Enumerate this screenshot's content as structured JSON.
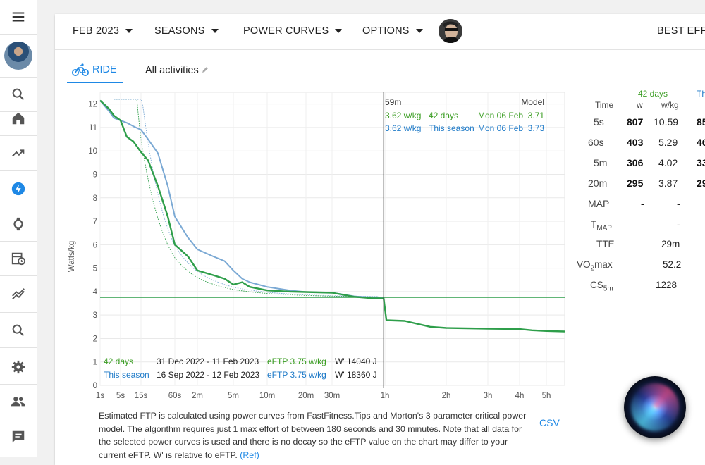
{
  "toolbar": {
    "month_label": "FEB 2023",
    "seasons_label": "SEASONS",
    "power_curves_label": "POWER CURVES",
    "options_label": "OPTIONS",
    "best_efforts_label": "BEST EFFO"
  },
  "tabs": {
    "ride_label": "RIDE",
    "all_activities_label": "All activities"
  },
  "sidebar": {
    "icons": [
      "menu-icon",
      "avatar",
      "search-icon",
      "home-icon",
      "trending-icon",
      "lightning-icon",
      "watch-icon",
      "calendar-icon",
      "chart-icon",
      "search-icon",
      "settings-icon",
      "people-icon",
      "chat-icon"
    ]
  },
  "chart_data": {
    "type": "line",
    "ylabel": "Watts/kg",
    "ylim": [
      0,
      12.5
    ],
    "y_ticks": [
      "0",
      "1",
      "2",
      "3",
      "4",
      "5",
      "6",
      "7",
      "8",
      "9",
      "10",
      "11",
      "12"
    ],
    "x_ticks": [
      "1s",
      "5s",
      "15s",
      "60s",
      "2m",
      "5m",
      "10m",
      "20m",
      "30m",
      "1h",
      "2h",
      "3h",
      "4h",
      "5h"
    ],
    "x_tick_seconds": [
      1,
      5,
      15,
      60,
      120,
      300,
      600,
      1200,
      1800,
      3600,
      7200,
      10800,
      14400,
      18000
    ],
    "x_scale": "log-ish (seconds)",
    "eftp_line": 3.75,
    "cursor_time": "59m",
    "series": [
      {
        "name": "42 days",
        "color": "#2e9e4a",
        "points": [
          [
            1,
            12.15
          ],
          [
            2,
            11.8
          ],
          [
            3,
            11.5
          ],
          [
            5,
            11.3
          ],
          [
            7,
            10.6
          ],
          [
            10,
            10.4
          ],
          [
            15,
            9.95
          ],
          [
            20,
            9.6
          ],
          [
            30,
            8.5
          ],
          [
            45,
            7.2
          ],
          [
            60,
            6.0
          ],
          [
            90,
            5.5
          ],
          [
            120,
            4.9
          ],
          [
            180,
            4.7
          ],
          [
            240,
            4.55
          ],
          [
            300,
            4.3
          ],
          [
            360,
            4.4
          ],
          [
            420,
            4.2
          ],
          [
            600,
            4.05
          ],
          [
            900,
            4.0
          ],
          [
            1200,
            3.98
          ],
          [
            1800,
            3.95
          ],
          [
            2400,
            3.78
          ],
          [
            3000,
            3.72
          ],
          [
            3540,
            3.71
          ],
          [
            3660,
            2.78
          ],
          [
            4500,
            2.75
          ],
          [
            6000,
            2.5
          ],
          [
            7200,
            2.45
          ],
          [
            10800,
            2.42
          ],
          [
            14400,
            2.4
          ],
          [
            16000,
            2.35
          ],
          [
            18000,
            2.32
          ],
          [
            21000,
            2.3
          ]
        ]
      },
      {
        "name": "This season",
        "color": "#7ba9d4",
        "points": [
          [
            1,
            12.15
          ],
          [
            2,
            11.7
          ],
          [
            3,
            11.4
          ],
          [
            5,
            11.3
          ],
          [
            7,
            11.2
          ],
          [
            10,
            11.05
          ],
          [
            15,
            10.9
          ],
          [
            20,
            10.5
          ],
          [
            30,
            9.9
          ],
          [
            45,
            8.5
          ],
          [
            60,
            7.2
          ],
          [
            90,
            6.3
          ],
          [
            120,
            5.8
          ],
          [
            180,
            5.5
          ],
          [
            240,
            5.3
          ],
          [
            300,
            4.9
          ],
          [
            360,
            4.55
          ],
          [
            420,
            4.4
          ],
          [
            600,
            4.2
          ],
          [
            900,
            4.05
          ],
          [
            1200,
            3.98
          ],
          [
            1800,
            3.95
          ],
          [
            2400,
            3.8
          ],
          [
            3000,
            3.74
          ],
          [
            3540,
            3.73
          ]
        ]
      }
    ],
    "annotations": {
      "cursor_header": "59m",
      "model_header": "Model",
      "row1": {
        "value": "3.62 w/kg",
        "label": "42 days",
        "date": "Mon 06 Feb",
        "model": "3.71"
      },
      "row2": {
        "value": "3.62 w/kg",
        "label": "This season",
        "date": "Mon 06 Feb",
        "model": "3.73"
      }
    },
    "legend": [
      {
        "name": "42 days",
        "range": "31 Dec 2022 - 11 Feb 2023",
        "eftp": "eFTP 3.75 w/kg",
        "wprime": "W' 14040 J"
      },
      {
        "name": "This season",
        "range": "16 Sep 2022 - 12 Feb 2023",
        "eftp": "eFTP 3.75 w/kg",
        "wprime": "W' 18360 J"
      }
    ]
  },
  "stats": {
    "group_label": "42 days",
    "group_label_partial": "Th",
    "headers": {
      "time": "Time",
      "w": "w",
      "wkg": "w/kg"
    },
    "rows": [
      {
        "time": "5s",
        "w": "807",
        "wkg": "10.59",
        "extra": "85"
      },
      {
        "time": "60s",
        "w": "403",
        "wkg": "5.29",
        "extra": "46"
      },
      {
        "time": "5m",
        "w": "306",
        "wkg": "4.02",
        "extra": "33"
      },
      {
        "time": "20m",
        "w": "295",
        "wkg": "3.87",
        "extra": "29"
      },
      {
        "time": "MAP",
        "w": "-",
        "wkg": "-",
        "extra": ""
      }
    ],
    "tmap": {
      "label": "T",
      "sub": "MAP",
      "value": "-"
    },
    "tte": {
      "label": "TTE",
      "value": "29m"
    },
    "vo2max": {
      "label_pre": "VO",
      "sub": "2",
      "label_post": "max",
      "value": "52.2"
    },
    "cs5m": {
      "label": "CS",
      "sub": "5m",
      "value": "1228"
    }
  },
  "footer": {
    "text": "Estimated FTP is calculated using power curves from FastFitness.Tips and Morton's 3 parameter critical power model. The algorithm requires just 1 max effort of between 180 seconds and 30 minutes. Note that all data for the selected power curves is used and there is no decay so the eFTP value on the chart may differ to your current eFTP. W' is relative to eFTP.",
    "ref_label": "(Ref)",
    "csv_label": "CSV"
  },
  "colors": {
    "accent": "#1e88e5",
    "green": "#2e9e4a",
    "blue_line": "#7ba9d4",
    "green_text": "#3a9d22",
    "blue_text": "#1e7ac8"
  }
}
